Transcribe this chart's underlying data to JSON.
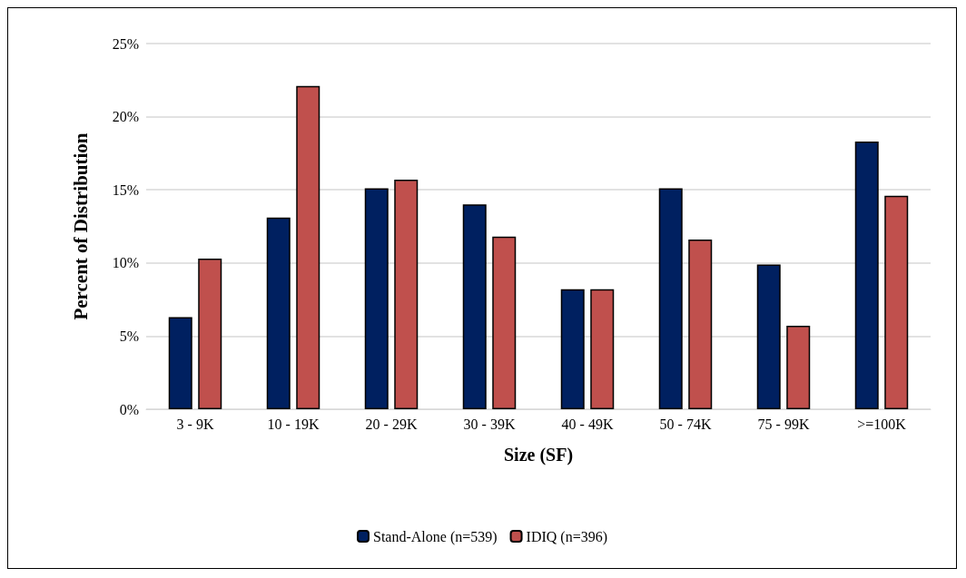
{
  "chart_data": {
    "type": "bar",
    "xlabel": "Size (SF)",
    "ylabel": "Percent of Distribution",
    "categories": [
      "3 - 9K",
      "10 - 19K",
      "20 - 29K",
      "30 - 39K",
      "40 - 49K",
      "50 - 74K",
      "75 - 99K",
      ">=100K"
    ],
    "series": [
      {
        "name": "Stand-Alone (n=539)",
        "color": "#002060",
        "values": [
          6.3,
          13.1,
          15.1,
          14.0,
          8.2,
          15.1,
          9.9,
          18.3
        ]
      },
      {
        "name": "IDIQ (n=396)",
        "color": "#c0504d",
        "values": [
          10.3,
          22.1,
          15.7,
          11.8,
          8.2,
          11.6,
          5.7,
          14.6
        ]
      }
    ],
    "ylim": [
      0,
      25
    ],
    "yticks": [
      {
        "value": 0,
        "label": "0%"
      },
      {
        "value": 5,
        "label": "5%"
      },
      {
        "value": 10,
        "label": "10%"
      },
      {
        "value": 15,
        "label": "15%"
      },
      {
        "value": 20,
        "label": "20%"
      },
      {
        "value": 25,
        "label": "25%"
      }
    ],
    "grid": "y",
    "legend": "bottom"
  }
}
